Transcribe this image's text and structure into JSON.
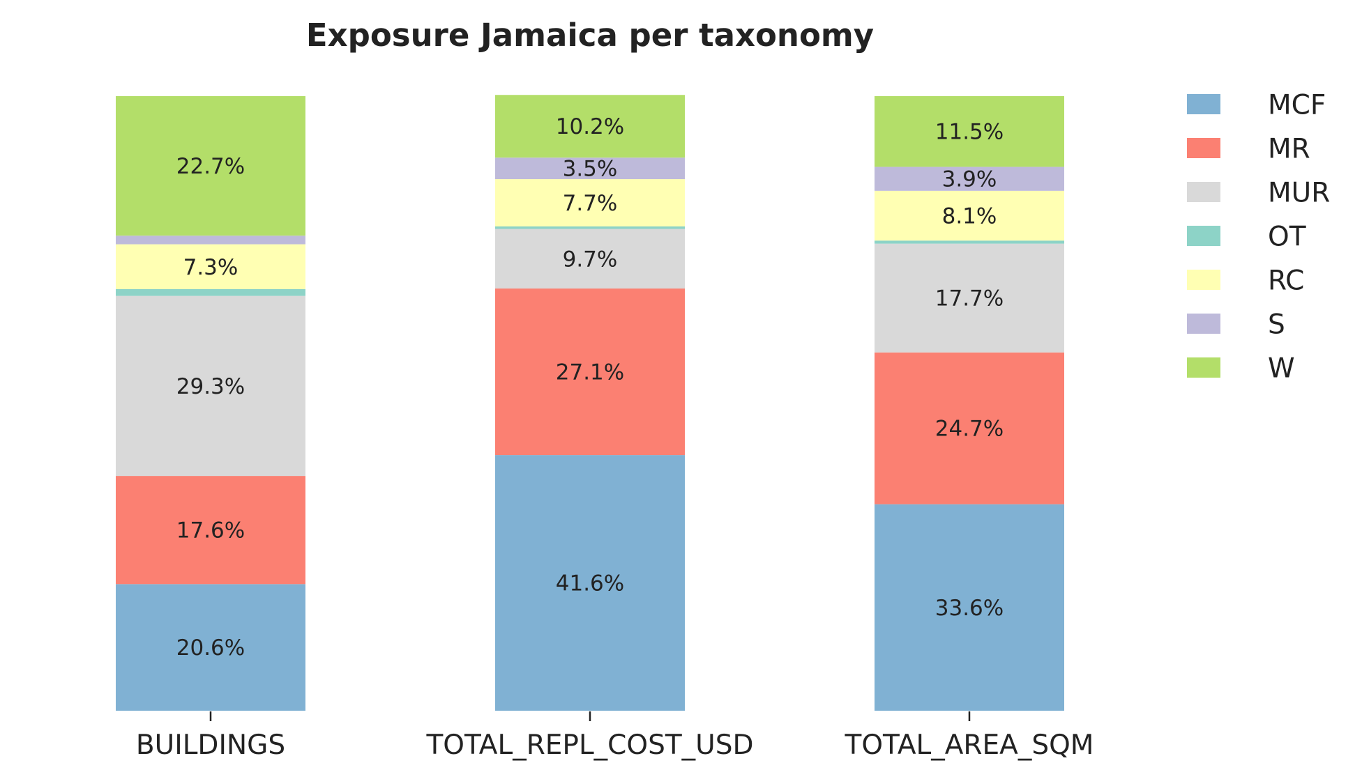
{
  "chart_data": {
    "type": "stacked-bar",
    "title": "Exposure Jamaica per taxonomy",
    "xlabel": "",
    "ylabel": "",
    "ylim": [
      0,
      100
    ],
    "grid": false,
    "legend_position": "upper-right-outside",
    "categories": [
      "BUILDINGS",
      "TOTAL_REPL_COST_USD",
      "TOTAL_AREA_SQM"
    ],
    "series": [
      {
        "name": "MCF",
        "color": "#80b1d3",
        "values": [
          20.6,
          41.6,
          33.6
        ],
        "labels": [
          "20.6%",
          "41.6%",
          "33.6%"
        ]
      },
      {
        "name": "MR",
        "color": "#fb8072",
        "values": [
          17.6,
          27.1,
          24.7
        ],
        "labels": [
          "17.6%",
          "27.1%",
          "24.7%"
        ]
      },
      {
        "name": "MUR",
        "color": "#d9d9d9",
        "values": [
          29.3,
          9.7,
          17.7
        ],
        "labels": [
          "29.3%",
          "9.7%",
          "17.7%"
        ]
      },
      {
        "name": "OT",
        "color": "#8dd3c7",
        "values": [
          1.1,
          0.4,
          0.5
        ],
        "labels": [
          "",
          "",
          ""
        ]
      },
      {
        "name": "RC",
        "color": "#ffffb3",
        "values": [
          7.3,
          7.7,
          8.1
        ],
        "labels": [
          "7.3%",
          "7.7%",
          "8.1%"
        ]
      },
      {
        "name": "S",
        "color": "#bebada",
        "values": [
          1.4,
          3.5,
          3.9
        ],
        "labels": [
          "",
          "3.5%",
          "3.9%"
        ]
      },
      {
        "name": "W",
        "color": "#b3de69",
        "values": [
          22.7,
          10.2,
          11.5
        ],
        "labels": [
          "22.7%",
          "10.2%",
          "11.5%"
        ]
      }
    ]
  }
}
